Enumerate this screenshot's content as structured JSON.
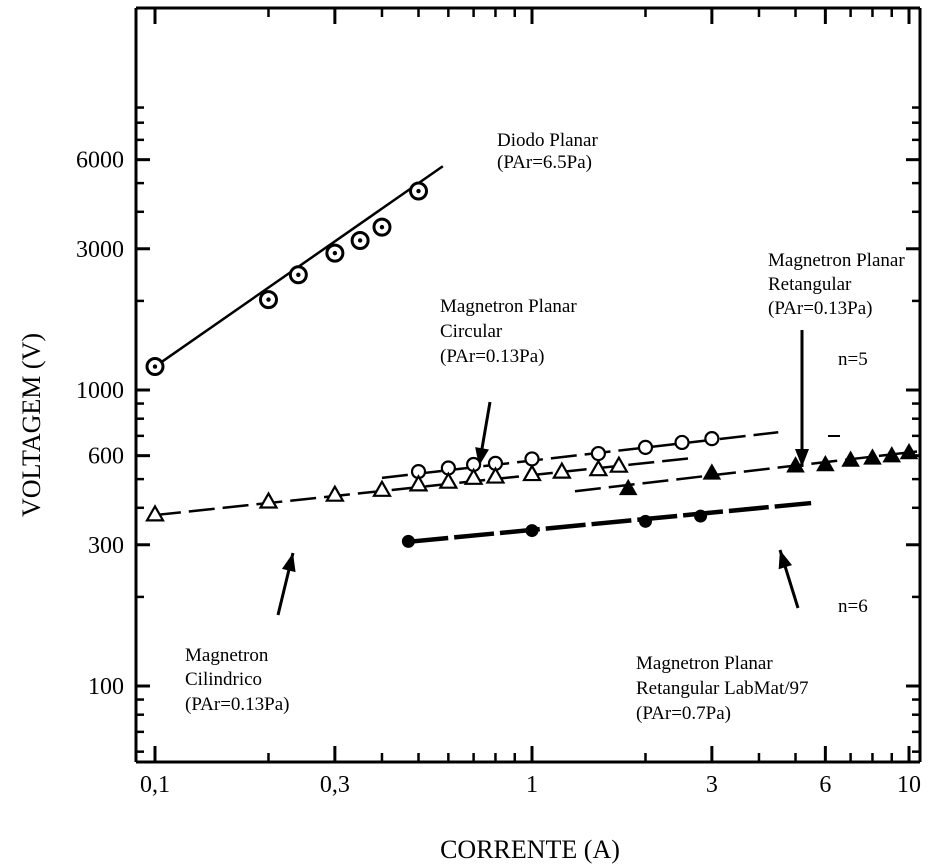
{
  "chart_data": {
    "type": "scatter",
    "title": "",
    "xlabel": "CORRENTE (A)",
    "ylabel": "VOLTAGEM (V)",
    "x_scale": "log",
    "y_scale": "log",
    "xlim": [
      0.09,
      10.5
    ],
    "ylim": [
      40,
      9500
    ],
    "x_ticks": [
      {
        "value": 0.1,
        "label": "0,1"
      },
      {
        "value": 0.3,
        "label": "0,3"
      },
      {
        "value": 1,
        "label": "1"
      },
      {
        "value": 3,
        "label": "3"
      },
      {
        "value": 6,
        "label": "6"
      },
      {
        "value": 10,
        "label": "10"
      }
    ],
    "y_ticks": [
      {
        "value": 100,
        "label": "100"
      },
      {
        "value": 300,
        "label": "300"
      },
      {
        "value": 600,
        "label": "600"
      },
      {
        "value": 1000,
        "label": "1000"
      },
      {
        "value": 3000,
        "label": "3000"
      },
      {
        "value": 6000,
        "label": "6000"
      }
    ],
    "grid": false,
    "series": [
      {
        "marker": "circle-dot",
        "line_style": "solid",
        "x": [
          0.1,
          0.2,
          0.24,
          0.3,
          0.35,
          0.4,
          0.5
        ],
        "y": [
          1200,
          2020,
          2450,
          2900,
          3200,
          3550,
          4700
        ],
        "fit_x": [
          0.1,
          0.58
        ],
        "fit_y": [
          1200,
          5700
        ]
      },
      {
        "marker": "open-circle",
        "line_style": "dashed",
        "x": [
          0.5,
          0.6,
          0.7,
          0.8,
          1.0,
          1.5,
          2.0,
          2.5,
          3.0
        ],
        "y": [
          530,
          545,
          560,
          565,
          585,
          610,
          640,
          665,
          685
        ],
        "fit_x": [
          0.4,
          4.5
        ],
        "fit_y": [
          505,
          720
        ]
      },
      {
        "marker": "open-triangle",
        "line_style": "dashed",
        "x": [
          0.1,
          0.2,
          0.3,
          0.4,
          0.5,
          0.6,
          0.7,
          0.8,
          1.0,
          1.2,
          1.5,
          1.7
        ],
        "y": [
          380,
          420,
          443,
          460,
          480,
          490,
          505,
          510,
          520,
          530,
          540,
          555
        ],
        "fit_x": [
          0.1,
          2.7
        ],
        "fit_y": [
          378,
          590
        ]
      },
      {
        "marker": "filled-triangle",
        "line_style": "dashed",
        "x": [
          1.8,
          3.0,
          5.0,
          6.0,
          7.0,
          8.0,
          9.0,
          10.0
        ],
        "y": [
          465,
          525,
          555,
          560,
          580,
          590,
          600,
          615
        ],
        "fit_x": [
          1.3,
          10.5
        ],
        "fit_y": [
          455,
          620
        ]
      },
      {
        "marker": "filled-circle",
        "line_style": "solid-thick",
        "x": [
          0.47,
          1.0,
          2.0,
          2.8
        ],
        "y": [
          308,
          335,
          360,
          375
        ],
        "fit_x": [
          0.47,
          5.5
        ],
        "fit_y": [
          307,
          415
        ]
      }
    ],
    "annotations": [
      {
        "text": "Diodo Planar"
      },
      {
        "text": "(PAr=6.5Pa)"
      },
      {
        "text": "Magnetron Planar"
      },
      {
        "text": "Circular"
      },
      {
        "text": "(PAr=0.13Pa)"
      },
      {
        "text": "Magnetron Planar"
      },
      {
        "text": "Retangular"
      },
      {
        "text": "(PAr=0.13Pa)"
      },
      {
        "text": "n=5"
      },
      {
        "text": "n=6"
      },
      {
        "text": "Magnetron"
      },
      {
        "text": "Cilindrico"
      },
      {
        "text": "(PAr=0.13Pa)"
      },
      {
        "text": "Magnetron Planar"
      },
      {
        "text": "Retangular LabMat/97"
      },
      {
        "text": "(PAr=0.7Pa)"
      }
    ]
  }
}
